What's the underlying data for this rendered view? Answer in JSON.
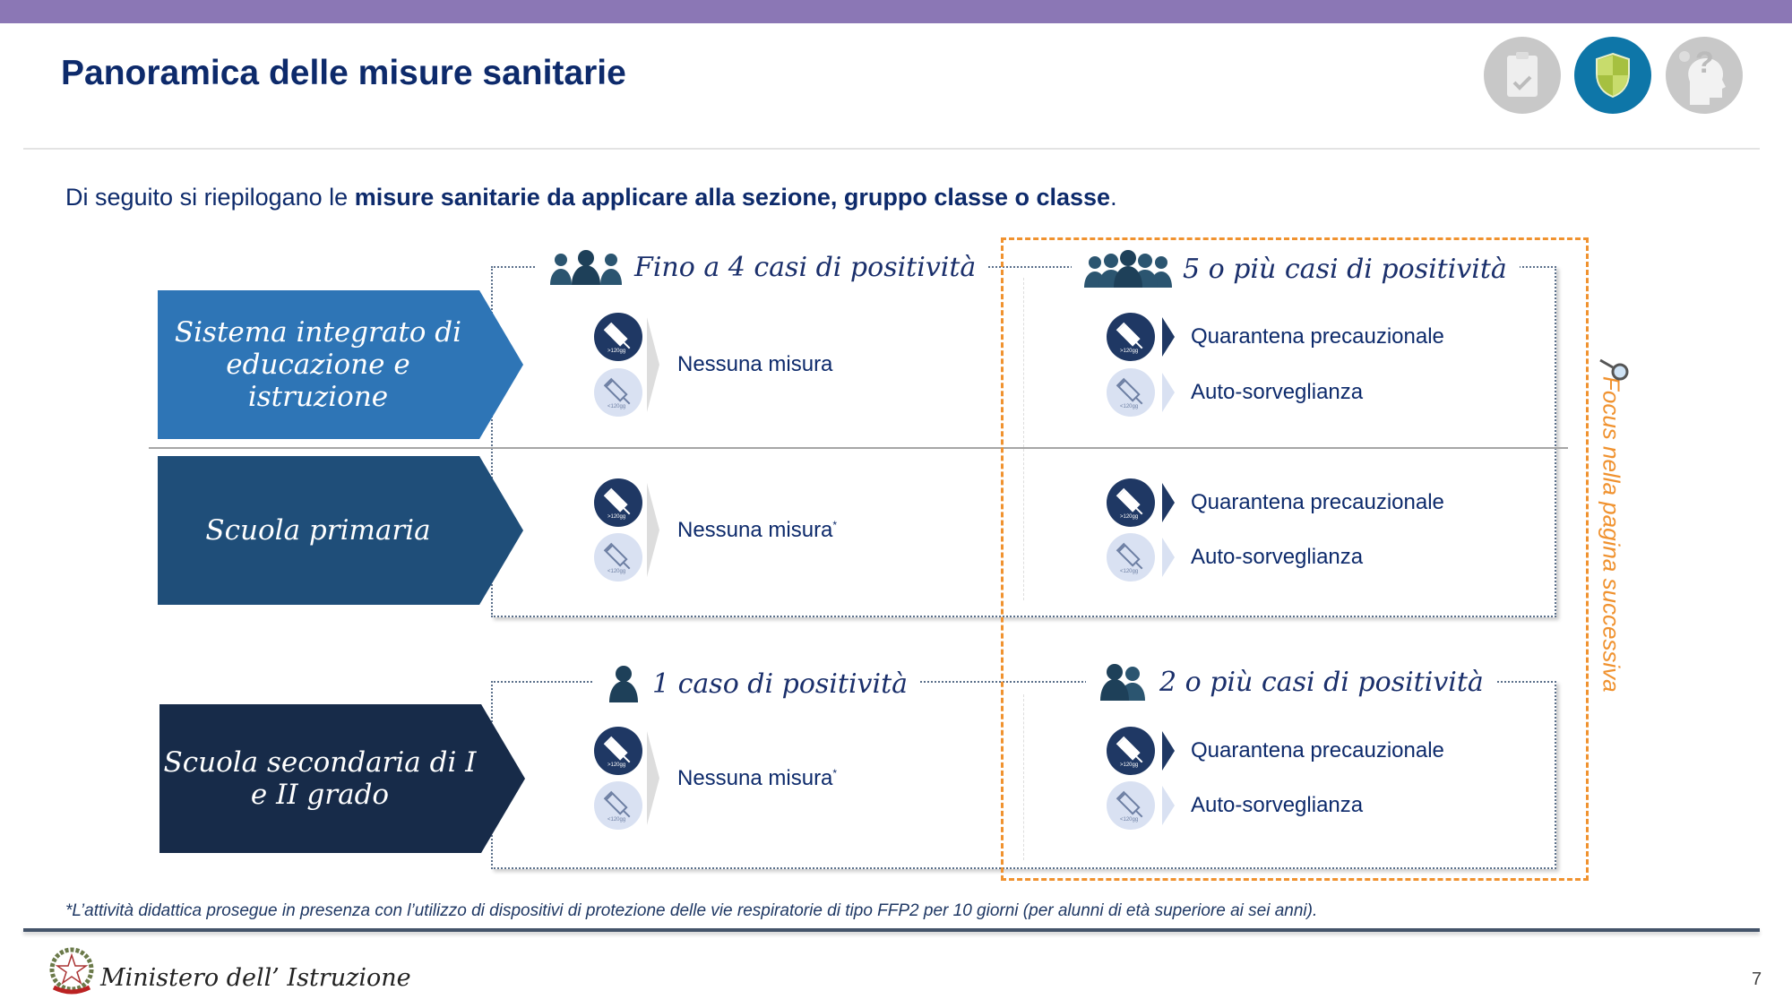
{
  "header": {
    "title": "Panoramica delle misure sanitarie",
    "icons": [
      "clipboard-check-icon",
      "shield-icon",
      "question-head-icon"
    ]
  },
  "intro": {
    "prefix": "Di seguito si riepilogano le ",
    "bold": "misure sanitarie da applicare alla sezione, gruppo classe o classe",
    "suffix": "."
  },
  "colors": {
    "accent": "#8b77b5",
    "focus": "#f0922f",
    "row1": "#2e75b6",
    "row2": "#1f4e79",
    "row3": "#172b49"
  },
  "groups": [
    {
      "headers": [
        "Fino a 4 casi di positività",
        "5 o più casi di positività"
      ],
      "rows": [
        {
          "label": "Sistema integrato di educazione e istruzione",
          "col1": "Nessuna misura",
          "col1_mark": "",
          "vaccinated": "Quarantena precauzionale",
          "not_vaccinated": "Auto-sorveglianza"
        },
        {
          "label": "Scuola primaria",
          "col1": "Nessuna misura",
          "col1_mark": "*",
          "vaccinated": "Quarantena precauzionale",
          "not_vaccinated": "Auto-sorveglianza"
        }
      ]
    },
    {
      "headers": [
        "1 caso di positività",
        "2 o più casi di positività"
      ],
      "rows": [
        {
          "label": "Scuola secondaria di I e II grado",
          "col1": "Nessuna misura",
          "col1_mark": "*",
          "vaccinated": "Quarantena precauzionale",
          "not_vaccinated": "Auto-sorveglianza"
        }
      ]
    }
  ],
  "syringe_labels": {
    "over": ">120gg",
    "under": "<120gg"
  },
  "focus_note": "Focus nella pagina successiva",
  "footnote": "*L’attività didattica prosegue in presenza con l’utilizzo di dispositivi di protezione delle vie respiratorie di tipo FFP2 per 10 giorni (per alunni di età superiore ai sei anni).",
  "footer": {
    "ministry": "Ministero dell’ Istruzione",
    "page": "7"
  }
}
